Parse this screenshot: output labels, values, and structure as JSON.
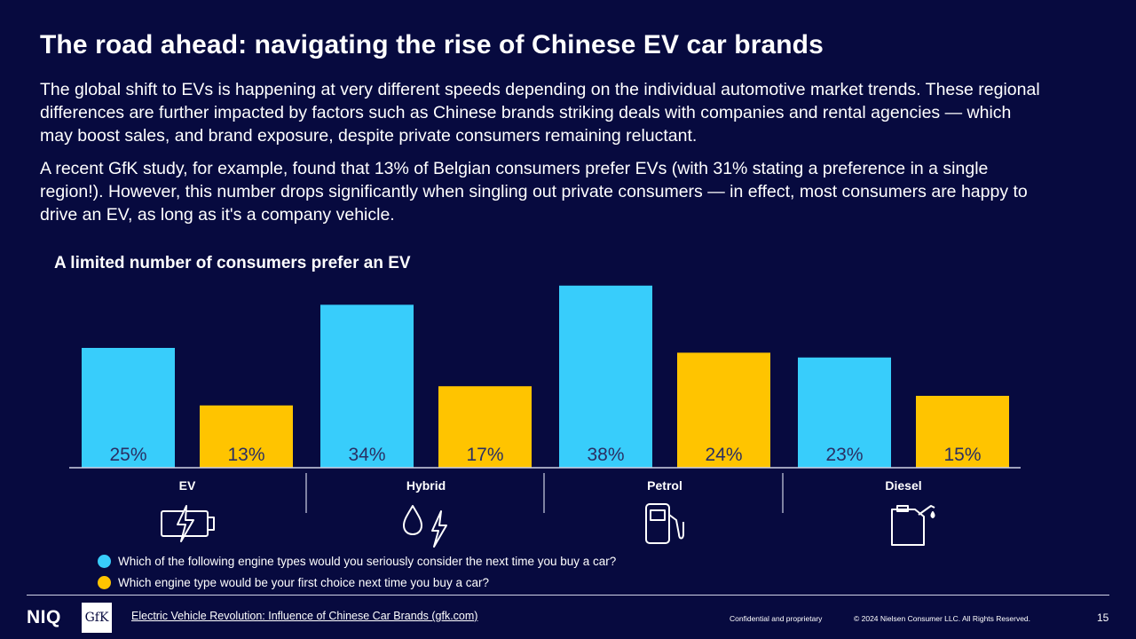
{
  "slide": {
    "title": "The road ahead: navigating the rise of Chinese EV car brands",
    "paragraph_1": "The global shift to EVs is happening at very different speeds depending on the individual automotive market trends. These regional differences are further impacted by factors such as Chinese brands striking deals with companies and rental agencies — which may boost sales, and brand exposure, despite private consumers remaining reluctant.",
    "paragraph_2": "A recent GfK study, for example, found that 13% of Belgian consumers prefer EVs (with 31% stating a preference in a single region!). However, this number drops significantly when singling out private consumers — in effect, most consumers are happy to drive an EV, as long as it's a company vehicle."
  },
  "chart_data": {
    "type": "bar",
    "title": "A limited number of consumers prefer an EV",
    "categories": [
      "EV",
      "Hybrid",
      "Petrol",
      "Diesel"
    ],
    "category_icons": [
      "battery-charging-icon",
      "fuel-drop-and-lightning-icon",
      "fuel-pump-icon",
      "jerrycan-icon"
    ],
    "series": [
      {
        "name": "Which of the following engine types would you seriously consider the next time you buy a car?",
        "values": [
          25,
          34,
          38,
          23
        ],
        "labels": [
          "25%",
          "34%",
          "38%",
          "23%"
        ],
        "color": "#38cdfb"
      },
      {
        "name": "Which engine type would be your first choice next time you buy a car?",
        "values": [
          13,
          17,
          24,
          15
        ],
        "labels": [
          "13%",
          "17%",
          "24%",
          "15%"
        ],
        "color": "#ffc400"
      }
    ],
    "ylim": [
      0,
      40
    ],
    "grid": false,
    "legend": "bottom-left"
  },
  "footer": {
    "niq_logo": "NIQ",
    "gfk_logo": "GfK",
    "link_text": "Electric Vehicle Revolution: Influence of Chinese Car Brands (gfk.com)",
    "confidential": "Confidential and proprietary",
    "copyright": "© 2024 Nielsen Consumer LLC. All Rights Reserved.",
    "page_number": "15"
  },
  "colors": {
    "background": "#070a3f",
    "text": "#ffffff",
    "bar_label": "#2a2f63"
  }
}
